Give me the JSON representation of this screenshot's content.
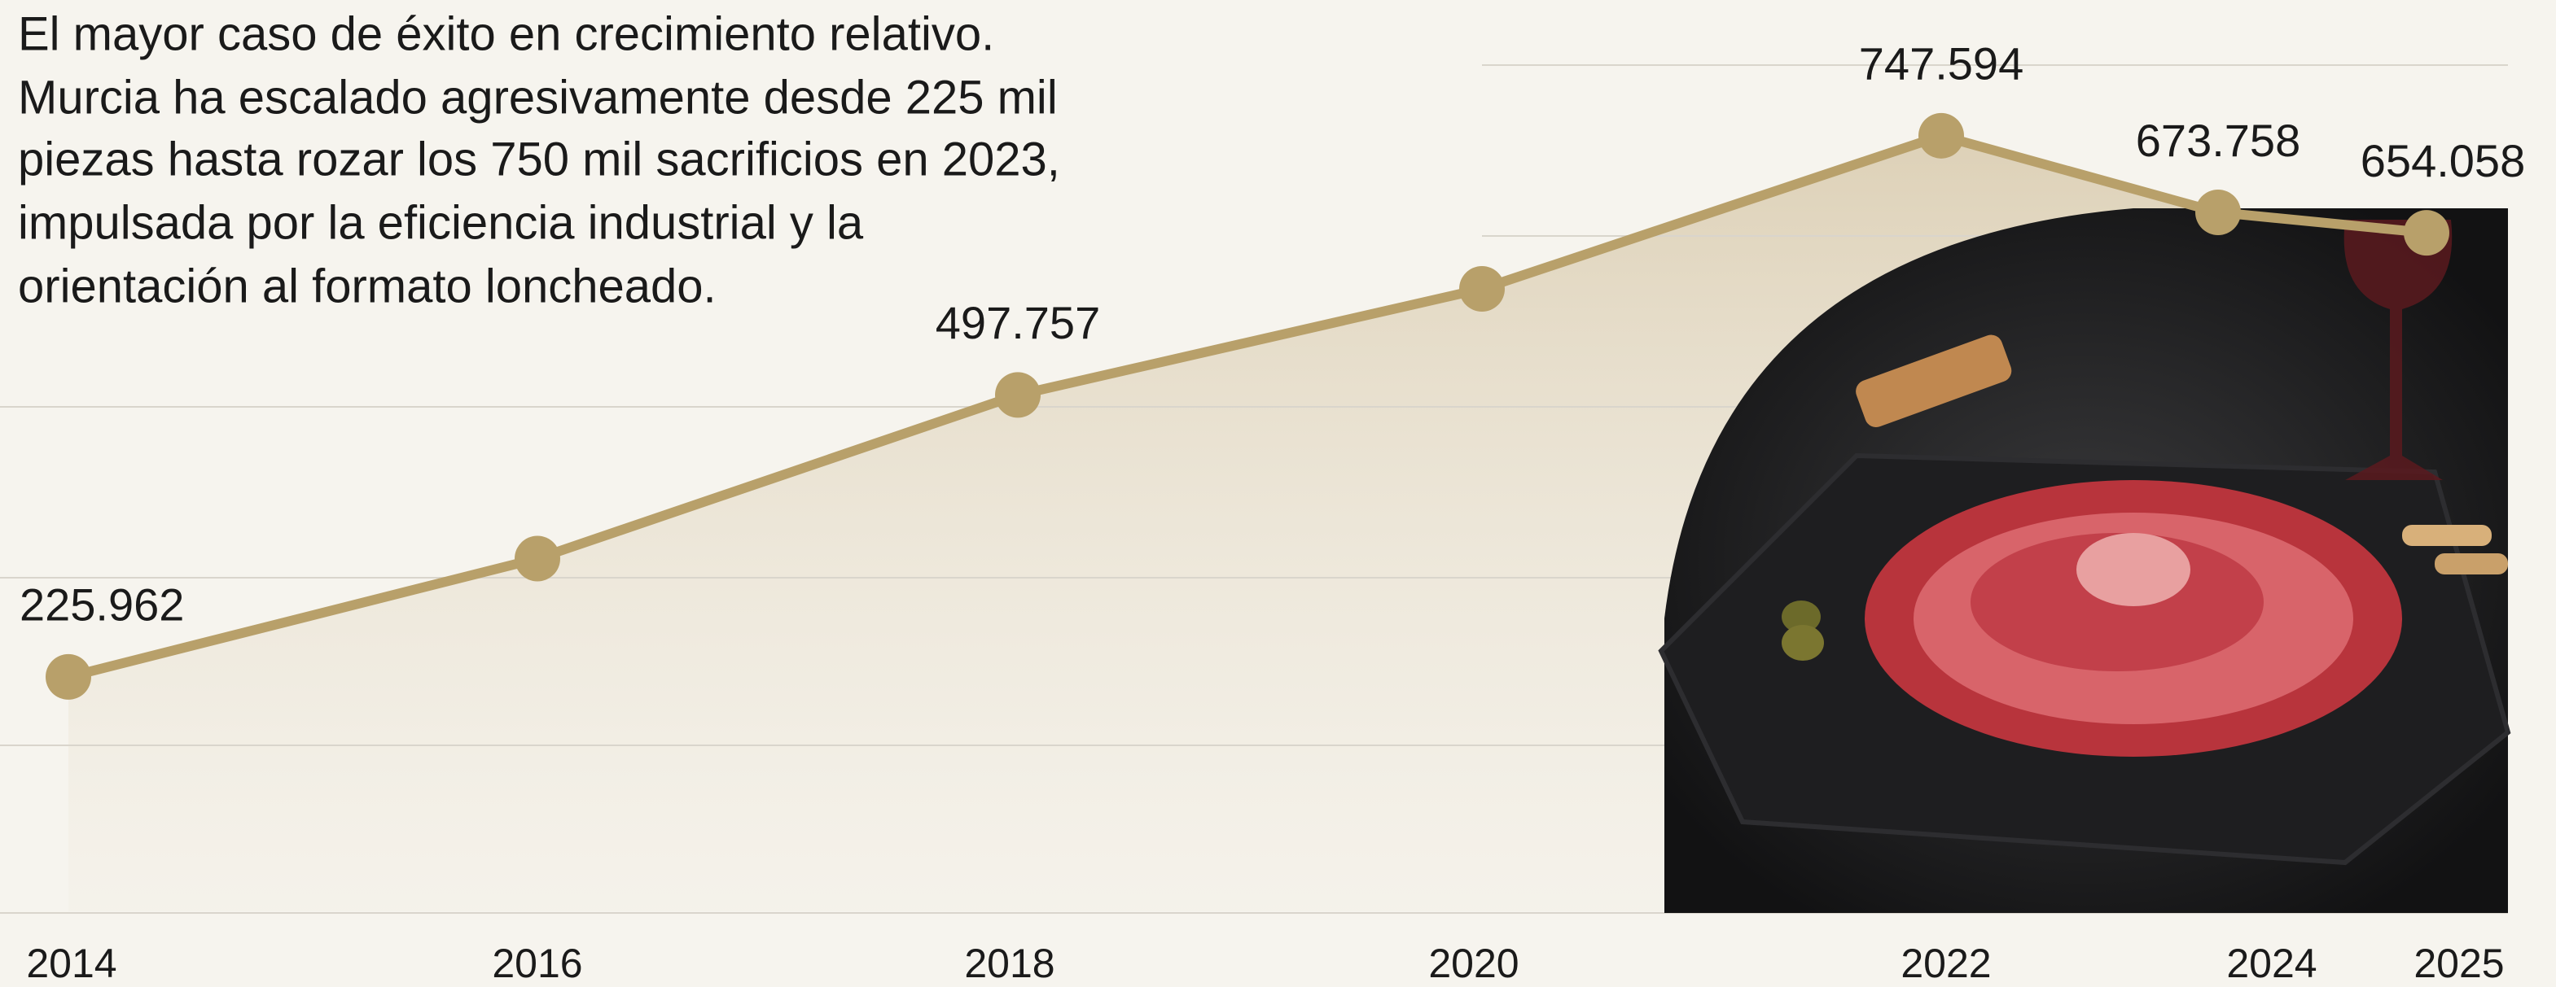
{
  "chart_data": {
    "type": "area",
    "title": [
      "El mayor caso de éxito en crecimiento relativo.",
      "Murcia ha escalado agresivamente desde 225 mil",
      "piezas hasta rozar los 750 mil sacrificios en 2023,",
      "impulsada por la eficiencia industrial y la",
      "orientación al formato loncheado."
    ],
    "categories": [
      "2014",
      "2016",
      "2018",
      "2020",
      "2022",
      "2024",
      "2025"
    ],
    "values": [
      225962,
      340000,
      497757,
      600000,
      747594,
      673758,
      654058
    ],
    "value_labels": [
      "225.962",
      null,
      "497.757",
      null,
      "747.594",
      "673.758",
      "654.058"
    ],
    "color": "#b8a06a",
    "ylim": [
      0,
      800000
    ]
  }
}
